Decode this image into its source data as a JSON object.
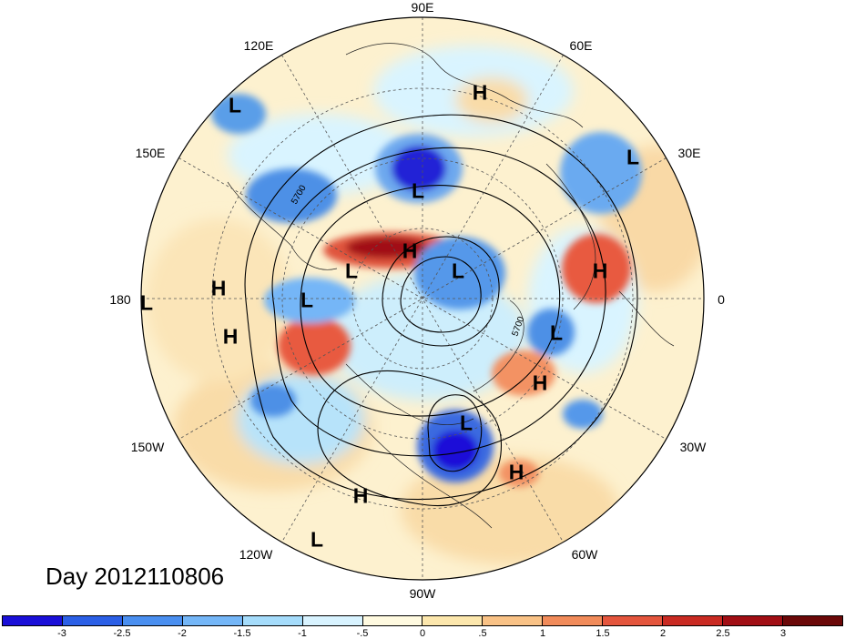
{
  "day_label": "Day 2012110806",
  "longitude_labels": [
    "90E",
    "120E",
    "60E",
    "150E",
    "30E",
    "180",
    "0",
    "150W",
    "30W",
    "120W",
    "60W",
    "90W"
  ],
  "contour_labels": [
    "5700",
    "5700"
  ],
  "pressure_centers": [
    {
      "label": "H"
    },
    {
      "label": "L"
    },
    {
      "label": "L"
    },
    {
      "label": "L"
    },
    {
      "label": "L"
    },
    {
      "label": "H"
    },
    {
      "label": "L"
    },
    {
      "label": "H"
    },
    {
      "label": "L"
    },
    {
      "label": "H"
    },
    {
      "label": "L"
    },
    {
      "label": "L"
    },
    {
      "label": "H"
    },
    {
      "label": "H"
    },
    {
      "label": "L"
    },
    {
      "label": "H"
    },
    {
      "label": "H"
    },
    {
      "label": "L"
    }
  ],
  "colorbar": {
    "colors": [
      "#1a0fd8",
      "#2b5fe6",
      "#4a8ff0",
      "#74b6f7",
      "#a5dcfb",
      "#d8f3ff",
      "#fffae0",
      "#fce7ad",
      "#f9c286",
      "#f18b5a",
      "#e4553d",
      "#c92a22",
      "#a10e14"
    ],
    "ticks": [
      "-3",
      "-2.5",
      "-2",
      "-1.5",
      "-1",
      "-.5",
      "0",
      ".5",
      "1",
      "1.5",
      "2",
      "2.5",
      "3"
    ]
  }
}
